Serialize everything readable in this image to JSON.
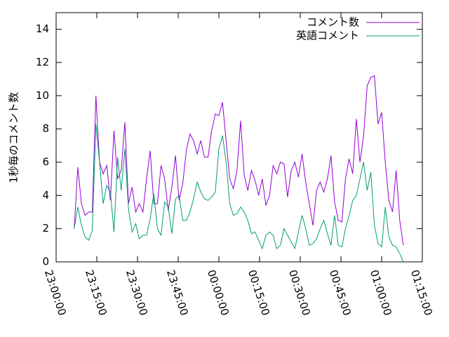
{
  "chart_data": {
    "type": "line",
    "y_label": "1秒毎のコメント数",
    "x": [
      "23:06:40",
      "23:08:00",
      "23:09:20",
      "23:10:40",
      "23:12:00",
      "23:13:20",
      "23:14:40",
      "23:16:00",
      "23:17:20",
      "23:18:40",
      "23:20:00",
      "23:21:20",
      "23:22:40",
      "23:24:00",
      "23:25:20",
      "23:26:40",
      "23:28:00",
      "23:29:20",
      "23:30:40",
      "23:32:00",
      "23:33:20",
      "23:34:40",
      "23:36:00",
      "23:37:20",
      "23:38:40",
      "23:40:00",
      "23:41:20",
      "23:42:40",
      "23:44:00",
      "23:45:20",
      "23:46:40",
      "23:48:00",
      "23:49:20",
      "23:50:40",
      "23:52:00",
      "23:53:20",
      "23:54:40",
      "23:56:00",
      "23:57:20",
      "23:58:40",
      "00:00:00",
      "00:01:20",
      "00:02:40",
      "00:04:00",
      "00:05:20",
      "00:06:40",
      "00:08:00",
      "00:09:20",
      "00:10:40",
      "00:12:00",
      "00:13:20",
      "00:14:40",
      "00:16:00",
      "00:17:20",
      "00:18:40",
      "00:20:00",
      "00:21:20",
      "00:22:40",
      "00:24:00",
      "00:25:20",
      "00:26:40",
      "00:28:00",
      "00:29:20",
      "00:30:40",
      "00:32:00",
      "00:33:20",
      "00:34:40",
      "00:36:00",
      "00:37:20",
      "00:38:40",
      "00:40:00",
      "00:41:20",
      "00:42:40",
      "00:44:00",
      "00:45:20",
      "00:46:40",
      "00:48:00",
      "00:49:20",
      "00:50:40",
      "00:52:00",
      "00:53:20",
      "00:54:40",
      "00:56:00",
      "00:57:20",
      "00:58:40",
      "01:00:00",
      "01:01:20",
      "01:02:40",
      "01:04:00",
      "01:05:20",
      "01:06:40",
      "01:08:00"
    ],
    "series": [
      {
        "name": "コメント数",
        "color": "#9400d3",
        "values": [
          2.0,
          5.7,
          3.5,
          2.8,
          3.0,
          3.0,
          10.0,
          6.0,
          5.3,
          5.8,
          3.7,
          7.9,
          5.0,
          5.5,
          8.4,
          3.5,
          4.5,
          3.0,
          3.5,
          3.0,
          5.0,
          6.7,
          3.5,
          3.5,
          5.8,
          5.0,
          3.1,
          4.5,
          6.4,
          3.7,
          4.7,
          6.7,
          7.7,
          7.3,
          6.5,
          7.3,
          6.3,
          6.3,
          7.9,
          8.9,
          8.8,
          9.6,
          7.3,
          5.0,
          4.4,
          5.5,
          8.5,
          5.2,
          4.3,
          5.5,
          4.9,
          4.0,
          5.0,
          3.4,
          4.0,
          5.8,
          5.3,
          6.0,
          5.9,
          3.9,
          5.5,
          6.0,
          5.1,
          6.5,
          4.8,
          3.5,
          2.2,
          4.3,
          4.8,
          4.2,
          5.0,
          6.4,
          3.6,
          2.5,
          2.4,
          5.0,
          6.2,
          5.3,
          8.6,
          6.0,
          7.6,
          10.6,
          11.1,
          11.2,
          8.3,
          9.0,
          6.0,
          3.7,
          3.0,
          5.5,
          2.5,
          1.0
        ]
      },
      {
        "name": "英語コメント",
        "color": "#009e73",
        "values": [
          2.0,
          3.3,
          2.2,
          1.5,
          1.3,
          1.9,
          8.3,
          6.0,
          3.5,
          4.6,
          4.2,
          1.8,
          6.3,
          4.3,
          6.8,
          3.2,
          1.8,
          2.3,
          1.4,
          1.6,
          1.6,
          2.6,
          4.1,
          2.0,
          1.6,
          3.6,
          3.3,
          1.7,
          3.8,
          4.0,
          2.5,
          2.5,
          3.0,
          3.8,
          4.8,
          4.2,
          3.8,
          3.7,
          3.9,
          4.2,
          6.8,
          7.6,
          6.0,
          3.5,
          2.8,
          2.9,
          3.3,
          3.0,
          2.5,
          1.7,
          1.8,
          1.3,
          0.8,
          1.6,
          1.8,
          1.6,
          0.8,
          1.0,
          2.0,
          1.6,
          1.2,
          0.8,
          1.8,
          2.8,
          2.0,
          1.0,
          1.1,
          1.4,
          2.0,
          2.5,
          1.7,
          1.0,
          2.8,
          1.0,
          0.9,
          2.0,
          2.8,
          3.7,
          4.0,
          5.0,
          6.0,
          4.3,
          5.4,
          2.2,
          1.1,
          0.9,
          3.3,
          1.5,
          1.0,
          0.9,
          0.5,
          0.0
        ]
      }
    ],
    "xlim": [
      "23:00:00",
      "01:15:00"
    ],
    "xticks": [
      "23:00:00",
      "23:15:00",
      "23:30:00",
      "23:45:00",
      "00:00:00",
      "00:15:00",
      "00:30:00",
      "00:45:00",
      "01:00:00",
      "01:15:00"
    ],
    "ylim": [
      0,
      15
    ],
    "yticks": [
      0,
      2,
      4,
      6,
      8,
      10,
      12,
      14
    ],
    "legend": "top-right"
  }
}
